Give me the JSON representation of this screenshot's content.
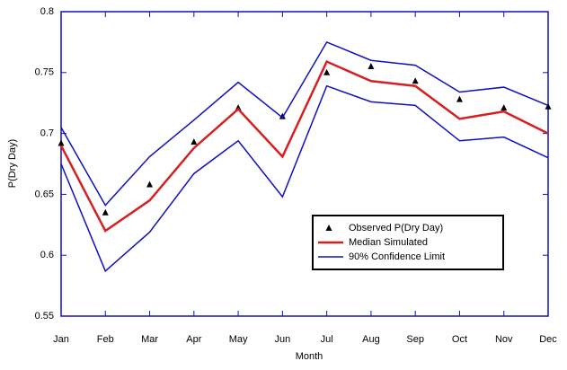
{
  "chart_data": {
    "type": "line",
    "x_label": "Month",
    "y_label": "P(Dry Day)",
    "categories": [
      "Jan",
      "Feb",
      "Mar",
      "Apr",
      "May",
      "Jun",
      "Jul",
      "Aug",
      "Sep",
      "Oct",
      "Nov",
      "Dec"
    ],
    "series": [
      {
        "name": "Observed P(Dry Day)",
        "color": "#000000",
        "style": "marker",
        "values": [
          0.692,
          0.635,
          0.658,
          0.693,
          0.721,
          0.714,
          0.75,
          0.755,
          0.743,
          0.728,
          0.721,
          0.722
        ]
      },
      {
        "name": "Median Simulated",
        "color": "#d42020",
        "style": "thick",
        "values": [
          0.69,
          0.62,
          0.645,
          0.688,
          0.72,
          0.681,
          0.759,
          0.743,
          0.739,
          0.712,
          0.718,
          0.7
        ]
      },
      {
        "name": "90% Confidence Limit",
        "color": "#1010c0",
        "style": "thin",
        "values": [
          0.705,
          0.641,
          0.681,
          0.711,
          0.742,
          0.713,
          0.775,
          0.76,
          0.756,
          0.734,
          0.738,
          0.723
        ]
      },
      {
        "color": "#1010c0",
        "style": "thin",
        "values": [
          0.675,
          0.587,
          0.619,
          0.667,
          0.694,
          0.648,
          0.739,
          0.726,
          0.723,
          0.694,
          0.697,
          0.68
        ]
      }
    ],
    "ylim": [
      0.55,
      0.8
    ],
    "yticks": [
      0.55,
      0.6,
      0.65,
      0.7,
      0.75,
      0.8
    ]
  }
}
